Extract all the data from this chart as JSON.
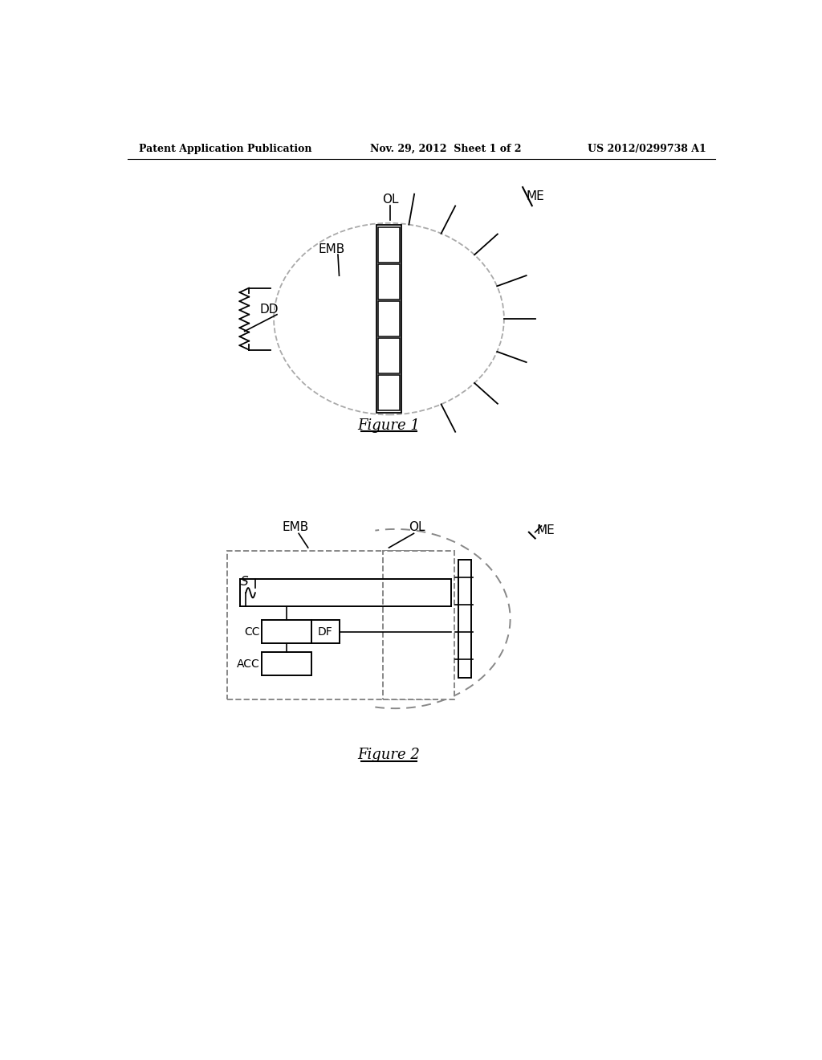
{
  "background_color": "#ffffff",
  "header_left": "Patent Application Publication",
  "header_center": "Nov. 29, 2012  Sheet 1 of 2",
  "header_right": "US 2012/0299738 A1",
  "fig1_caption": "Figure 1",
  "fig2_caption": "Figure 2",
  "text_color": "#000000",
  "line_color": "#000000"
}
